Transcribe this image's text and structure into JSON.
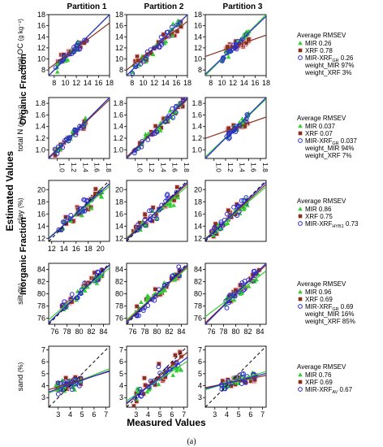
{
  "figure": {
    "label": "(a)",
    "x_label": "Measured Values",
    "y_label": "Estimated Values",
    "group_labels": [
      "Organic Fraction",
      "Inorganic Fraction"
    ],
    "partitions": [
      "Partition 1",
      "Partition 2",
      "Partition 3"
    ]
  },
  "colors": {
    "mir": "#33cc33",
    "xrf": "#8b2f1f",
    "fused": "#2b2bd0",
    "one_to_one": "#000000"
  },
  "legend_symbols": {
    "mir": "triangle",
    "xrf": "square",
    "fused": "circle"
  },
  "chart_data": [
    {
      "type": "scatter",
      "row": 0,
      "property": "total OC",
      "unit": "(g kg⁻¹)",
      "xlim": [
        7,
        18
      ],
      "ylim": [
        7,
        18
      ],
      "ticks": [
        8,
        10,
        12,
        14,
        16,
        18
      ],
      "xtick_labels": [
        "8",
        "10",
        "12",
        "14",
        "16",
        "18"
      ],
      "ytick_labels": [
        "8",
        "10",
        "12",
        "14",
        "16",
        "18"
      ],
      "show_xticks": [
        true,
        true,
        true
      ],
      "legend": {
        "title": "Average RMSEV",
        "entries": [
          {
            "series": "mir",
            "label": "MIR 0.26"
          },
          {
            "series": "xrf",
            "label": "XRF 0.78"
          },
          {
            "series": "fused",
            "label": "MIR-XRF",
            "sub": "GR",
            "value": " 0.26"
          }
        ],
        "notes": [
          "weight_MIR 97%",
          "weight_XRF 3%"
        ]
      },
      "panels": [
        {
          "xr": [
            8,
            14
          ],
          "scatter": 0.7,
          "fits": {
            "mir": [
              1.0,
              0.0
            ],
            "xrf": [
              0.75,
              3.0
            ],
            "fused": [
              1.0,
              0.0
            ]
          }
        },
        {
          "xr": [
            8,
            17
          ],
          "scatter": 0.9,
          "fits": {
            "mir": [
              1.0,
              0.0
            ],
            "xrf": [
              0.8,
              2.4
            ],
            "fused": [
              1.0,
              0.0
            ]
          }
        },
        {
          "xr": [
            10,
            15
          ],
          "scatter": 0.6,
          "fits": {
            "mir": [
              1.0,
              0.0
            ],
            "xrf": [
              0.35,
              8.0
            ],
            "fused": [
              0.95,
              0.6
            ]
          }
        }
      ]
    },
    {
      "type": "scatter",
      "row": 1,
      "property": "total N",
      "unit": "(g kg⁻¹)",
      "xlim": [
        0.85,
        1.9
      ],
      "ylim": [
        0.85,
        1.9
      ],
      "ticks": [
        1.0,
        1.2,
        1.4,
        1.6,
        1.8
      ],
      "xtick_labels": [
        "1.0",
        "1.2",
        "1.4",
        "1.6",
        "1.8"
      ],
      "ytick_labels": [
        "1.0",
        "1.2",
        "1.4",
        "1.6",
        "1.8"
      ],
      "show_xticks": [
        true,
        true,
        true
      ],
      "legend": {
        "title": "Average RMSEV",
        "entries": [
          {
            "series": "mir",
            "label": "MIR 0.037"
          },
          {
            "series": "xrf",
            "label": "XRF 0.07"
          },
          {
            "series": "fused",
            "label": "MIR-XRF",
            "sub": "GR",
            "value": " 0.037"
          }
        ],
        "notes": [
          "weight_MIR 94%",
          "weight_XRF 7%"
        ]
      },
      "panels": [
        {
          "xr": [
            0.95,
            1.5
          ],
          "scatter": 0.06,
          "fits": {
            "mir": [
              1.0,
              0.0
            ],
            "xrf": [
              0.95,
              0.06
            ],
            "fused": [
              1.0,
              0.0
            ]
          }
        },
        {
          "xr": [
            0.95,
            1.85
          ],
          "scatter": 0.07,
          "fits": {
            "mir": [
              1.0,
              0.0
            ],
            "xrf": [
              0.95,
              0.07
            ],
            "fused": [
              1.0,
              0.0
            ]
          }
        },
        {
          "xr": [
            1.2,
            1.6
          ],
          "scatter": 0.05,
          "fits": {
            "mir": [
              0.95,
              0.07
            ],
            "xrf": [
              0.35,
              0.9
            ],
            "fused": [
              1.0,
              0.0
            ]
          }
        }
      ]
    },
    {
      "type": "scatter",
      "row": 2,
      "property": "clay",
      "unit": "(%)",
      "xlim": [
        11.5,
        21.5
      ],
      "ylim": [
        11.5,
        21.5
      ],
      "ticks": [
        12,
        14,
        16,
        18,
        20
      ],
      "xtick_labels": [
        "12",
        "14",
        "16",
        "18",
        "20"
      ],
      "ytick_labels": [
        "12",
        "14",
        "16",
        "18",
        "20"
      ],
      "show_xticks": [
        true,
        false,
        false
      ],
      "legend": {
        "title": "Average RMSEV",
        "entries": [
          {
            "series": "mir",
            "label": "MIR 0.86"
          },
          {
            "series": "xrf",
            "label": "XRF 0.75"
          },
          {
            "series": "fused",
            "label": "MIR-XRF",
            "sub": "HYB1",
            "value": " 0.73"
          }
        ],
        "notes": []
      },
      "panels": [
        {
          "xr": [
            13,
            20.5
          ],
          "scatter": 0.9,
          "fits": {
            "mir": [
              0.85,
              2.3
            ],
            "xrf": [
              0.9,
              1.6
            ],
            "fused": [
              0.9,
              1.6
            ]
          }
        },
        {
          "xr": [
            12.5,
            20
          ],
          "scatter": 1.0,
          "fits": {
            "mir": [
              0.85,
              2.3
            ],
            "xrf": [
              0.9,
              1.6
            ],
            "fused": [
              0.95,
              0.8
            ]
          }
        },
        {
          "xr": [
            12.5,
            18.5
          ],
          "scatter": 0.9,
          "fits": {
            "mir": [
              0.85,
              2.2
            ],
            "xrf": [
              0.9,
              1.5
            ],
            "fused": [
              0.95,
              0.8
            ]
          }
        }
      ]
    },
    {
      "type": "scatter",
      "row": 3,
      "property": "silt",
      "unit": "(%)",
      "xlim": [
        75,
        85
      ],
      "ylim": [
        75,
        85
      ],
      "ticks": [
        76,
        78,
        80,
        82,
        84
      ],
      "xtick_labels": [
        "76",
        "78",
        "80",
        "82",
        "84"
      ],
      "ytick_labels": [
        "76",
        "78",
        "80",
        "82",
        "84"
      ],
      "show_xticks": [
        true,
        true,
        true
      ],
      "legend": {
        "title": "Average RMSEV",
        "entries": [
          {
            "series": "mir",
            "label": "MIR 0.96"
          },
          {
            "series": "xrf",
            "label": "XRF 0.69"
          },
          {
            "series": "fused",
            "label": "MIR-XRF",
            "sub": "GR",
            "value": " 0.69"
          }
        ],
        "notes": [
          "weight_MIR 16%",
          "weight_XRF 85%"
        ]
      },
      "panels": [
        {
          "xr": [
            77,
            84
          ],
          "scatter": 0.8,
          "fits": {
            "mir": [
              0.85,
              12.0
            ],
            "xrf": [
              0.95,
              4.0
            ],
            "fused": [
              0.95,
              4.0
            ]
          }
        },
        {
          "xr": [
            76.5,
            84
          ],
          "scatter": 0.9,
          "fits": {
            "mir": [
              0.85,
              12.0
            ],
            "xrf": [
              0.9,
              8.0
            ],
            "fused": [
              0.95,
              4.0
            ]
          }
        },
        {
          "xr": [
            78,
            84
          ],
          "scatter": 0.8,
          "fits": {
            "mir": [
              0.75,
              20.0
            ],
            "xrf": [
              0.95,
              4.0
            ],
            "fused": [
              1.0,
              0.0
            ]
          }
        }
      ]
    },
    {
      "type": "scatter",
      "row": 4,
      "property": "sand",
      "unit": "(%)",
      "xlim": [
        2.2,
        7.3
      ],
      "ylim": [
        2.2,
        7.3
      ],
      "ticks": [
        3,
        4,
        5,
        6,
        7
      ],
      "xtick_labels": [
        "3",
        "4",
        "5",
        "6",
        "7"
      ],
      "ytick_labels": [
        "3",
        "4",
        "5",
        "6",
        "7"
      ],
      "show_xticks": [
        true,
        true,
        true
      ],
      "legend": {
        "title": "Average RMSEV",
        "entries": [
          {
            "series": "mir",
            "label": "MIR 0.76"
          },
          {
            "series": "xrf",
            "label": "XRF 0.69"
          },
          {
            "series": "fused",
            "label": "MIR-XRF",
            "sub": "AV",
            "value": " 0.67"
          }
        ],
        "notes": []
      },
      "panels": [
        {
          "xr": [
            2.8,
            5.0
          ],
          "scatter": 0.5,
          "fits": {
            "mir": [
              0.4,
              2.5
            ],
            "xrf": [
              0.3,
              3.0
            ],
            "fused": [
              0.35,
              2.7
            ]
          }
        },
        {
          "xr": [
            2.8,
            6.8
          ],
          "scatter": 0.7,
          "fits": {
            "mir": [
              0.65,
              1.3
            ],
            "xrf": [
              0.85,
              0.6
            ],
            "fused": [
              0.75,
              0.9
            ]
          }
        },
        {
          "xr": [
            3.5,
            6.5
          ],
          "scatter": 0.35,
          "fits": {
            "mir": [
              0.3,
              3.0
            ],
            "xrf": [
              0.2,
              3.4
            ],
            "fused": [
              0.25,
              3.2
            ]
          }
        }
      ]
    }
  ]
}
